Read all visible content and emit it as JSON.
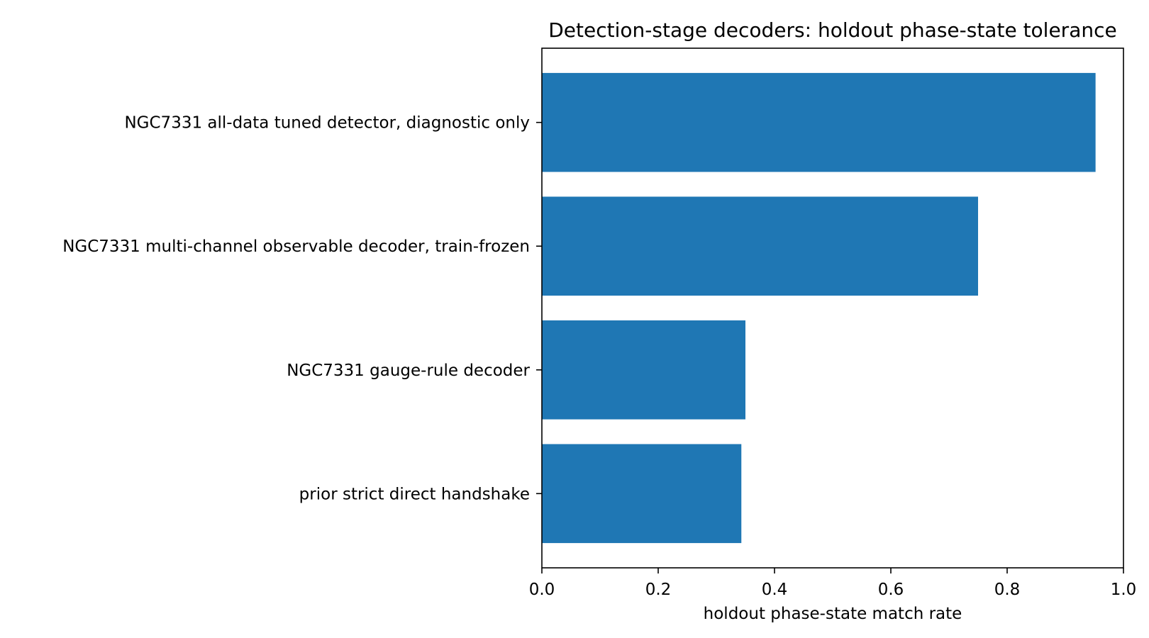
{
  "chart_data": {
    "type": "bar",
    "orientation": "horizontal",
    "title": "Detection-stage decoders: holdout phase-state tolerance",
    "xlabel": "holdout phase-state match rate",
    "ylabel": "",
    "xlim": [
      0.0,
      1.0
    ],
    "xticks": [
      0.0,
      0.2,
      0.4,
      0.6,
      0.8,
      1.0
    ],
    "xtick_labels": [
      "0.0",
      "0.2",
      "0.4",
      "0.6",
      "0.8",
      "1.0"
    ],
    "categories": [
      "NGC7331 all-data tuned detector, diagnostic only",
      "NGC7331 multi-channel observable decoder, train-frozen",
      "NGC7331 gauge-rule decoder",
      "prior strict direct handshake"
    ],
    "values": [
      0.952,
      0.75,
      0.35,
      0.343
    ],
    "bar_color": "#1f77b4",
    "grid": false,
    "legend": "none"
  }
}
